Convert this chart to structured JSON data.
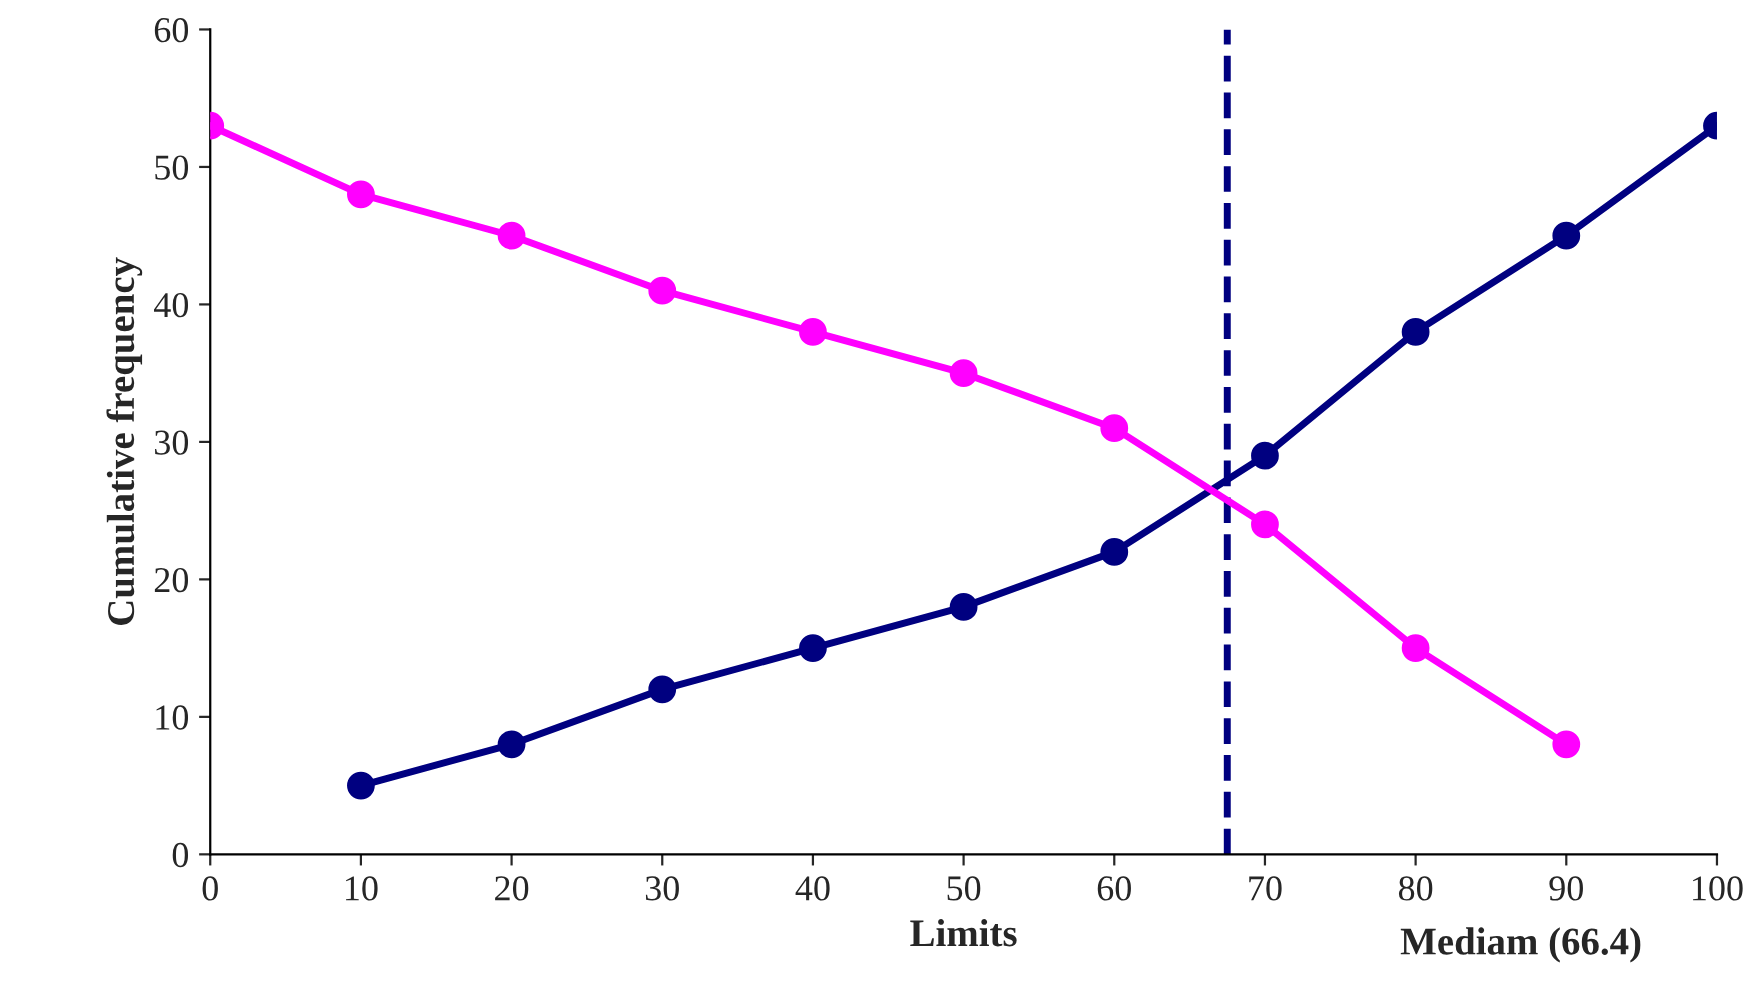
{
  "chart_data": {
    "type": "line",
    "xlabel": "Limits",
    "ylabel": "Cumulative frequency",
    "xlim": [
      0,
      100
    ],
    "xticks": [
      0,
      10,
      20,
      30,
      40,
      50,
      60,
      70,
      80,
      90,
      100
    ],
    "ylim": [
      0,
      60
    ],
    "yticks": [
      0,
      10,
      20,
      30,
      40,
      50,
      60
    ],
    "series": [
      {
        "color": "#000080",
        "x": [
          10,
          20,
          30,
          40,
          50,
          60,
          70,
          80,
          90,
          100
        ],
        "values": [
          5,
          8,
          12,
          15,
          18,
          22,
          29,
          38,
          45,
          53
        ]
      },
      {
        "color": "#ff00ff",
        "x": [
          0,
          10,
          20,
          30,
          40,
          50,
          60,
          70,
          80,
          90
        ],
        "values": [
          53,
          48,
          45,
          41,
          38,
          35,
          31,
          24,
          15,
          8
        ]
      }
    ],
    "marker": "circle",
    "grid": false,
    "legend": false,
    "annotations": [
      "Mediam (66.4)"
    ],
    "ref_lines": [
      {
        "axis": "x",
        "value": 67.5,
        "color": "#000080",
        "line_style": "dashed"
      }
    ]
  }
}
